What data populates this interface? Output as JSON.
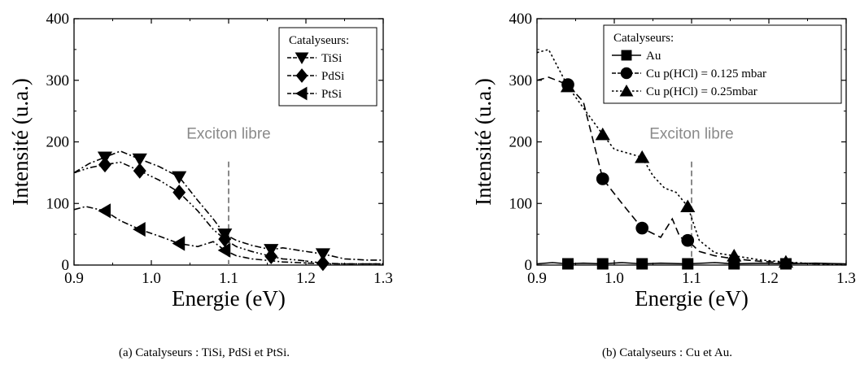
{
  "colors": {
    "series": "#000000",
    "annotation": "#8a8a8a"
  },
  "chart_data": [
    {
      "type": "line",
      "caption": "(a) Catalyseurs : TiSi, PdSi et PtSi.",
      "xlabel": "Energie (eV)",
      "ylabel": "Intensité (u.a.)",
      "xlim": [
        0.9,
        1.3
      ],
      "ylim": [
        0,
        400
      ],
      "xticks": [
        "0.9",
        "1.0",
        "1.1",
        "1.2",
        "1.3"
      ],
      "yticks": [
        "0",
        "100",
        "200",
        "300",
        "400"
      ],
      "legend_title": "Catalyseurs:",
      "legend_position": "top-right",
      "grid": false,
      "annotation": {
        "text": "Exciton libre",
        "x": 1.1
      },
      "series": [
        {
          "name": "TiSi",
          "marker": "triangle-down",
          "dash": "dash-dot",
          "points": [
            [
              0.9,
              150
            ],
            [
              0.92,
              165
            ],
            [
              0.94,
              175
            ],
            [
              0.96,
              185
            ],
            [
              0.985,
              172
            ],
            [
              1.01,
              160
            ],
            [
              1.036,
              143
            ],
            [
              1.06,
              105
            ],
            [
              1.08,
              75
            ],
            [
              1.095,
              50
            ],
            [
              1.11,
              40
            ],
            [
              1.13,
              32
            ],
            [
              1.155,
              25
            ],
            [
              1.17,
              28
            ],
            [
              1.19,
              24
            ],
            [
              1.222,
              18
            ],
            [
              1.25,
              10
            ],
            [
              1.28,
              8
            ],
            [
              1.3,
              8
            ]
          ],
          "marker_x": [
            0.94,
            0.985,
            1.036,
            1.095,
            1.155,
            1.222
          ]
        },
        {
          "name": "PdSi",
          "marker": "diamond",
          "dash": "dash-dot-dot",
          "points": [
            [
              0.9,
              150
            ],
            [
              0.92,
              158
            ],
            [
              0.94,
              163
            ],
            [
              0.96,
              167
            ],
            [
              0.985,
              153
            ],
            [
              1.01,
              138
            ],
            [
              1.036,
              118
            ],
            [
              1.06,
              88
            ],
            [
              1.08,
              58
            ],
            [
              1.095,
              42
            ],
            [
              1.11,
              30
            ],
            [
              1.13,
              22
            ],
            [
              1.155,
              14
            ],
            [
              1.17,
              10
            ],
            [
              1.19,
              8
            ],
            [
              1.222,
              3
            ],
            [
              1.25,
              2
            ],
            [
              1.28,
              2
            ],
            [
              1.3,
              2
            ]
          ],
          "marker_x": [
            0.94,
            0.985,
            1.036,
            1.095,
            1.155,
            1.222
          ]
        },
        {
          "name": "PtSi",
          "marker": "triangle-left",
          "dash": "dash-dot",
          "points": [
            [
              0.9,
              90
            ],
            [
              0.915,
              95
            ],
            [
              0.94,
              88
            ],
            [
              0.96,
              72
            ],
            [
              0.985,
              58
            ],
            [
              1.01,
              47
            ],
            [
              1.036,
              35
            ],
            [
              1.06,
              30
            ],
            [
              1.08,
              38
            ],
            [
              1.095,
              24
            ],
            [
              1.11,
              15
            ],
            [
              1.13,
              10
            ],
            [
              1.155,
              7
            ],
            [
              1.17,
              5
            ],
            [
              1.19,
              4
            ],
            [
              1.222,
              2
            ],
            [
              1.25,
              2
            ],
            [
              1.28,
              2
            ],
            [
              1.3,
              2
            ]
          ],
          "marker_x": [
            0.94,
            0.985,
            1.036,
            1.095
          ]
        }
      ]
    },
    {
      "type": "line",
      "caption": "(b) Catalyseurs : Cu et Au.",
      "xlabel": "Energie (eV)",
      "ylabel": "Intensité (u.a.)",
      "xlim": [
        0.9,
        1.3
      ],
      "ylim": [
        0,
        400
      ],
      "xticks": [
        "0.9",
        "1.0",
        "1.1",
        "1.2",
        "1.3"
      ],
      "yticks": [
        "0",
        "100",
        "200",
        "300",
        "400"
      ],
      "legend_title": "Catalyseurs:",
      "legend_position": "top-right",
      "grid": false,
      "annotation": {
        "text": "Exciton libre",
        "x": 1.1
      },
      "series": [
        {
          "name": "Au",
          "marker": "square",
          "dash": "solid",
          "points": [
            [
              0.9,
              2
            ],
            [
              0.92,
              4
            ],
            [
              0.94,
              2
            ],
            [
              0.96,
              3
            ],
            [
              0.985,
              2
            ],
            [
              1.01,
              4
            ],
            [
              1.036,
              2
            ],
            [
              1.06,
              3
            ],
            [
              1.095,
              2
            ],
            [
              1.13,
              4
            ],
            [
              1.155,
              2
            ],
            [
              1.19,
              3
            ],
            [
              1.222,
              2
            ],
            [
              1.26,
              3
            ],
            [
              1.3,
              2
            ]
          ],
          "marker_x": [
            0.94,
            0.985,
            1.036,
            1.095,
            1.155,
            1.222
          ]
        },
        {
          "name": "Cu p(HCl) = 0.125 mbar",
          "marker": "circle",
          "dash": "dash",
          "points": [
            [
              0.9,
              300
            ],
            [
              0.915,
              305
            ],
            [
              0.94,
              293
            ],
            [
              0.96,
              265
            ],
            [
              0.985,
              140
            ],
            [
              1.01,
              100
            ],
            [
              1.036,
              60
            ],
            [
              1.06,
              45
            ],
            [
              1.075,
              75
            ],
            [
              1.085,
              45
            ],
            [
              1.095,
              40
            ],
            [
              1.11,
              22
            ],
            [
              1.13,
              15
            ],
            [
              1.155,
              10
            ],
            [
              1.19,
              6
            ],
            [
              1.222,
              4
            ],
            [
              1.26,
              2
            ],
            [
              1.3,
              2
            ]
          ],
          "marker_x": [
            0.94,
            0.985,
            1.036,
            1.095
          ]
        },
        {
          "name": "Cu p(HCl) = 0.25mbar",
          "marker": "triangle-up",
          "dash": "dot",
          "points": [
            [
              0.9,
              345
            ],
            [
              0.915,
              350
            ],
            [
              0.94,
              290
            ],
            [
              0.96,
              255
            ],
            [
              0.985,
              212
            ],
            [
              1.0,
              188
            ],
            [
              1.036,
              175
            ],
            [
              1.05,
              145
            ],
            [
              1.065,
              125
            ],
            [
              1.08,
              118
            ],
            [
              1.095,
              95
            ],
            [
              1.11,
              40
            ],
            [
              1.13,
              20
            ],
            [
              1.155,
              15
            ],
            [
              1.19,
              8
            ],
            [
              1.222,
              5
            ],
            [
              1.26,
              2
            ],
            [
              1.3,
              1
            ]
          ],
          "marker_x": [
            0.94,
            0.985,
            1.036,
            1.095,
            1.155,
            1.222
          ]
        }
      ]
    }
  ]
}
